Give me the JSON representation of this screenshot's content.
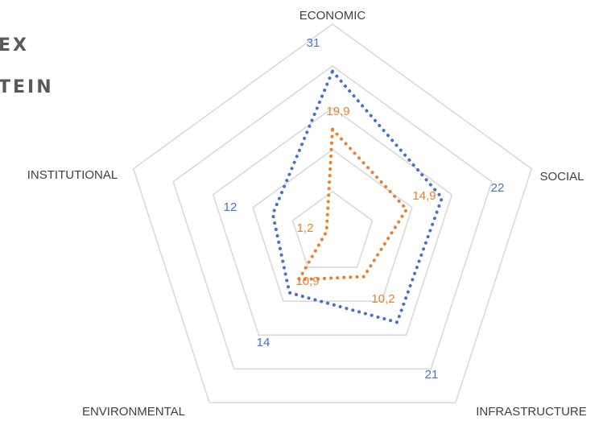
{
  "title_fragment": {
    "line1": "EX",
    "line2": "TEIN"
  },
  "chart_data": {
    "type": "radar",
    "axes": [
      "ECONOMIC",
      "SOCIAL",
      "INFRASTRUCTURE",
      "ENVIRONMENTAL",
      "INSTITUTIONAL"
    ],
    "series": [
      {
        "values": [
          31,
          22,
          21,
          14,
          12
        ],
        "labels": [
          "31",
          "22",
          "21",
          "14",
          "12"
        ],
        "color": "#4472C4",
        "line_style": "dotted"
      },
      {
        "values": [
          19.9,
          14.9,
          10.2,
          10.9,
          1.2
        ],
        "labels": [
          "19,9",
          "14,9",
          "10,2",
          "10,9",
          "1,2"
        ],
        "color": "#ED7D31",
        "line_style": "dotted"
      }
    ],
    "rmax": 40,
    "grid_rings": 5,
    "grid_color": "#D9D9D9",
    "legend": "none"
  }
}
